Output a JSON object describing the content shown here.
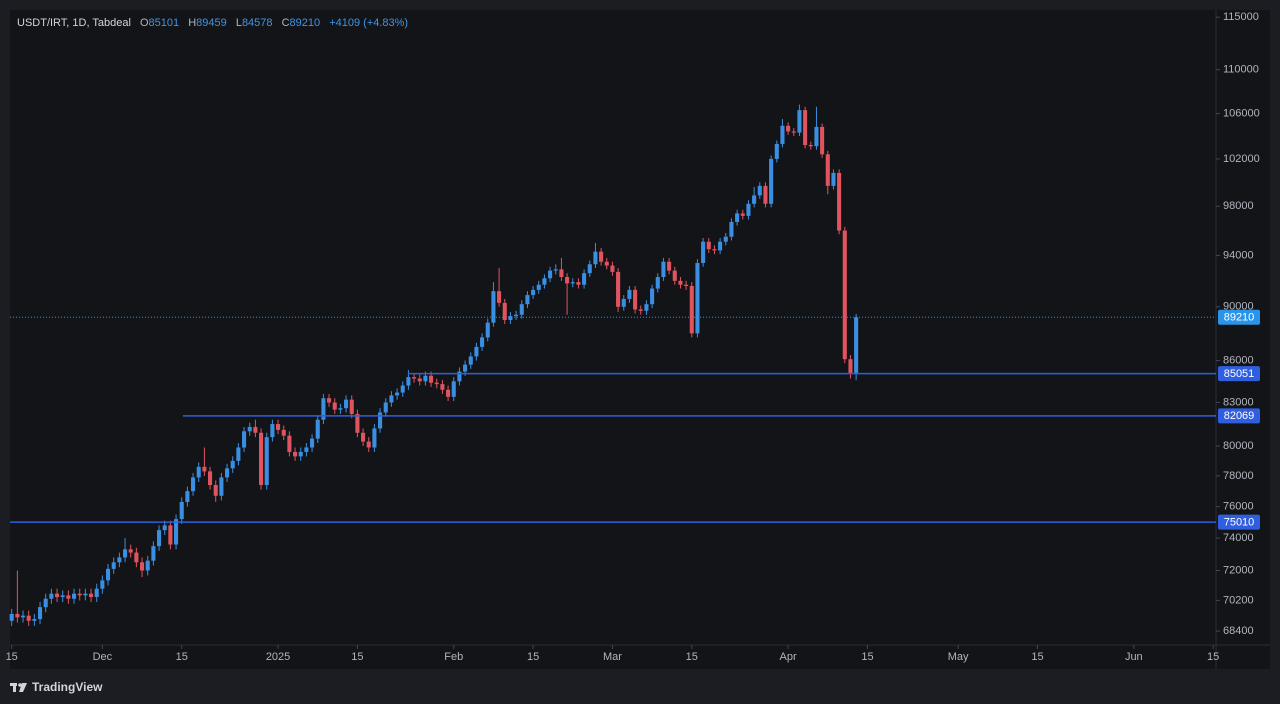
{
  "chart_data": {
    "type": "candlestick",
    "title": "USDT/IRT, 1D, Tabdeal",
    "ohlc_labels": [
      "O",
      "H",
      "L",
      "C"
    ],
    "change": "+4109 (+4.83%)",
    "open": [
      69000,
      69400,
      69200,
      69300,
      69000,
      69100,
      69800,
      70300,
      70600,
      70400,
      70500,
      70300,
      70600,
      70500,
      70600,
      70400,
      70900,
      71400,
      72100,
      72500,
      72800,
      73300,
      73100,
      72500,
      72000,
      72600,
      73500,
      74500,
      74800,
      73600,
      75200,
      76300,
      77000,
      77900,
      78600,
      78300,
      77400,
      76700,
      77900,
      78500,
      79000,
      79900,
      81000,
      81300,
      80900,
      77400,
      80600,
      81500,
      81100,
      80700,
      79600,
      79300,
      79600,
      79900,
      80500,
      81800,
      83300,
      83000,
      82500,
      82600,
      83200,
      82200,
      80900,
      80300,
      79900,
      81200,
      82300,
      83000,
      83500,
      83700,
      84200,
      84800,
      84700,
      84500,
      84900,
      84400,
      84300,
      83900,
      83400,
      84500,
      85200,
      85700,
      86300,
      87000,
      87700,
      88800,
      91200,
      90300,
      89000,
      89300,
      89400,
      90200,
      90900,
      91300,
      91700,
      92200,
      92800,
      92900,
      92300,
      91800,
      91900,
      91700,
      92600,
      93300,
      94300,
      93500,
      93200,
      92700,
      90000,
      90600,
      91300,
      89800,
      89700,
      90200,
      91400,
      92300,
      93500,
      92800,
      92000,
      91700,
      91600,
      88000,
      93400,
      95100,
      94500,
      94400,
      95100,
      95500,
      96700,
      97400,
      97200,
      98200,
      98900,
      99700,
      98200,
      102000,
      103300,
      104900,
      104400,
      104300,
      106300,
      103200,
      103100,
      104800,
      102400,
      99700,
      100800,
      96000,
      86100,
      85101
    ],
    "high": [
      69700,
      72000,
      69600,
      69600,
      69400,
      70100,
      70600,
      70900,
      70900,
      70800,
      70800,
      70900,
      70900,
      70900,
      70900,
      71200,
      71700,
      72400,
      72800,
      73100,
      74000,
      73600,
      73400,
      72800,
      72900,
      73800,
      74800,
      75100,
      75100,
      75500,
      76600,
      77300,
      78200,
      78900,
      79900,
      78600,
      77700,
      78200,
      78800,
      79300,
      80200,
      81300,
      81600,
      81800,
      81200,
      80900,
      81800,
      81800,
      81400,
      81000,
      79900,
      79900,
      80200,
      80800,
      82100,
      83600,
      83600,
      83300,
      82900,
      83500,
      83500,
      82500,
      81200,
      80600,
      81500,
      82600,
      83300,
      83800,
      84000,
      84500,
      85300,
      85100,
      85000,
      85200,
      85200,
      84700,
      84600,
      84200,
      84800,
      85500,
      86000,
      86600,
      87300,
      88000,
      89100,
      91900,
      93000,
      90600,
      89600,
      89700,
      90500,
      91200,
      91600,
      92000,
      92500,
      93100,
      93300,
      93800,
      92600,
      92200,
      92200,
      92900,
      93600,
      95000,
      94600,
      93800,
      93500,
      93000,
      90900,
      91600,
      91600,
      90100,
      90500,
      91700,
      92600,
      93800,
      93800,
      93100,
      92300,
      92000,
      91900,
      93700,
      95400,
      95400,
      94800,
      95400,
      95800,
      97000,
      97700,
      97700,
      98500,
      99600,
      100000,
      100000,
      102300,
      103600,
      105500,
      105200,
      104700,
      106800,
      106600,
      103500,
      106600,
      105100,
      102700,
      101100,
      101100,
      96300,
      86400,
      89459
    ],
    "low": [
      68700,
      68900,
      68900,
      68700,
      68700,
      68800,
      69500,
      70000,
      70100,
      70100,
      70000,
      70000,
      70200,
      70200,
      70100,
      70100,
      70600,
      71100,
      71800,
      72200,
      72500,
      72800,
      72200,
      71600,
      71700,
      72300,
      73200,
      74200,
      73300,
      73300,
      74900,
      76000,
      76700,
      77600,
      78000,
      77100,
      76300,
      76400,
      77600,
      78200,
      78700,
      79600,
      80700,
      80600,
      77100,
      77100,
      80300,
      80800,
      80400,
      79300,
      79000,
      79000,
      79300,
      79600,
      80200,
      81500,
      82700,
      82200,
      82200,
      82300,
      81900,
      80600,
      80000,
      79600,
      79600,
      80900,
      82000,
      82700,
      83200,
      83400,
      83900,
      84400,
      84200,
      84200,
      84100,
      84000,
      83600,
      83100,
      83100,
      84200,
      84900,
      85400,
      86000,
      86700,
      87400,
      88500,
      90000,
      88700,
      88700,
      89000,
      89100,
      89900,
      90600,
      91000,
      91400,
      91900,
      92500,
      92000,
      89400,
      91500,
      91400,
      91400,
      92300,
      93000,
      93200,
      92900,
      92400,
      89600,
      89700,
      90300,
      89500,
      89400,
      89400,
      89900,
      91100,
      92000,
      92500,
      91700,
      91400,
      91300,
      87700,
      87700,
      93100,
      94200,
      94100,
      94100,
      94800,
      95200,
      96400,
      96900,
      96900,
      97900,
      98600,
      97900,
      97900,
      101700,
      103000,
      104100,
      104000,
      104000,
      102900,
      102800,
      102800,
      102100,
      99000,
      99400,
      95700,
      85800,
      84700,
      84578
    ],
    "close": [
      69400,
      69200,
      69300,
      69000,
      69100,
      69800,
      70300,
      70600,
      70400,
      70500,
      70300,
      70600,
      70500,
      70600,
      70400,
      70900,
      71400,
      72100,
      72500,
      72800,
      73300,
      73100,
      72500,
      72000,
      72600,
      73500,
      74500,
      74800,
      73600,
      75200,
      76300,
      77000,
      77900,
      78600,
      78300,
      77400,
      76700,
      77900,
      78500,
      79000,
      79900,
      81000,
      81300,
      80900,
      77400,
      80600,
      81500,
      81100,
      80700,
      79600,
      79300,
      79600,
      79900,
      80500,
      81800,
      83300,
      83000,
      82500,
      82600,
      83200,
      82200,
      80900,
      80300,
      79900,
      81200,
      82300,
      83000,
      83500,
      83700,
      84200,
      84800,
      84700,
      84500,
      84900,
      84400,
      84300,
      83900,
      83400,
      84500,
      85200,
      85700,
      86300,
      87000,
      87700,
      88800,
      91200,
      90300,
      89000,
      89300,
      89400,
      90200,
      90900,
      91300,
      91700,
      92200,
      92800,
      92900,
      92300,
      91800,
      91900,
      91700,
      92600,
      93300,
      94300,
      93500,
      93200,
      92700,
      90000,
      90600,
      91300,
      89800,
      89700,
      90200,
      91400,
      92300,
      93500,
      92800,
      92000,
      91700,
      91600,
      88000,
      93400,
      95100,
      94500,
      94400,
      95100,
      95500,
      96700,
      97400,
      97200,
      98200,
      98900,
      99700,
      98200,
      102000,
      103300,
      104900,
      104400,
      104300,
      106300,
      103200,
      103100,
      104800,
      102400,
      99700,
      100800,
      96000,
      86100,
      85101,
      89210
    ],
    "up_color": "#3b8fe3",
    "down_color": "#e0545f",
    "log_scale": true,
    "grid": false,
    "ylim": [
      67600,
      115700
    ],
    "yticks": [
      115000,
      110000,
      106000,
      102000,
      98000,
      94000,
      90000,
      86000,
      83000,
      80000,
      78000,
      76000,
      74000,
      72000,
      70200,
      68400
    ],
    "xlim": [
      -0.3,
      212.5
    ],
    "xticks": [
      {
        "value": 0,
        "label": "15"
      },
      {
        "value": 16,
        "label": "Dec"
      },
      {
        "value": 30,
        "label": "15"
      },
      {
        "value": 47,
        "label": "2025"
      },
      {
        "value": 61,
        "label": "15"
      },
      {
        "value": 78,
        "label": "Feb"
      },
      {
        "value": 92,
        "label": "15"
      },
      {
        "value": 106,
        "label": "Mar"
      },
      {
        "value": 120,
        "label": "15"
      },
      {
        "value": 137,
        "label": "Apr"
      },
      {
        "value": 151,
        "label": "15"
      },
      {
        "value": 167,
        "label": "May"
      },
      {
        "value": 181,
        "label": "15"
      },
      {
        "value": 198,
        "label": "Jun"
      },
      {
        "value": 212,
        "label": "15"
      }
    ],
    "levels": [
      {
        "value": 85051
      },
      {
        "value": 82069
      },
      {
        "value": 75010
      }
    ],
    "level_color": "#2f5fe0",
    "last_price_color": "#2a93ea"
  },
  "footer": {
    "brand": "TradingView"
  }
}
